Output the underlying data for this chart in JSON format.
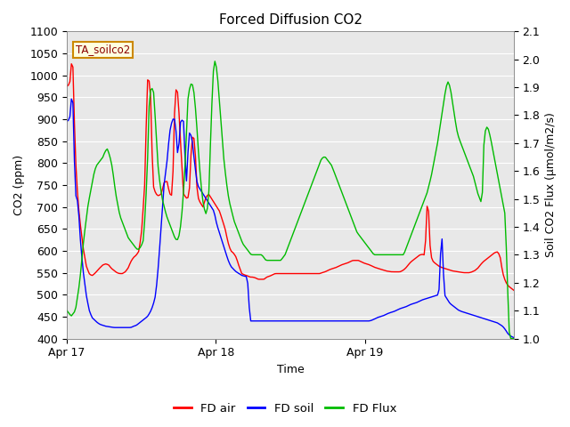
{
  "title": "Forced Diffusion CO2",
  "xlabel": "Time",
  "ylabel_left": "CO2 (ppm)",
  "ylabel_right": "Soil CO2 Flux (μmol/m2/s)",
  "annotation": "TA_soilco2",
  "ylim_left": [
    400,
    1100
  ],
  "ylim_right": [
    1.0,
    2.1
  ],
  "yticks_left": [
    400,
    450,
    500,
    550,
    600,
    650,
    700,
    750,
    800,
    850,
    900,
    950,
    1000,
    1050,
    1100
  ],
  "yticks_right": [
    1.0,
    1.1,
    1.2,
    1.3,
    1.4,
    1.5,
    1.6,
    1.7,
    1.8,
    1.9,
    2.0,
    2.1
  ],
  "xtick_labels": [
    "Apr 17",
    "Apr 18",
    "Apr 19"
  ],
  "xtick_positions": [
    0.0,
    1.0,
    2.0
  ],
  "bg_color": "#e8e8e8",
  "line_colors": {
    "fd_air": "#ff0000",
    "fd_soil": "#0000ff",
    "fd_flux": "#00bb00"
  },
  "legend_labels": [
    "FD air",
    "FD soil",
    "FD Flux"
  ],
  "title_fontsize": 11,
  "label_fontsize": 9,
  "tick_fontsize": 9
}
